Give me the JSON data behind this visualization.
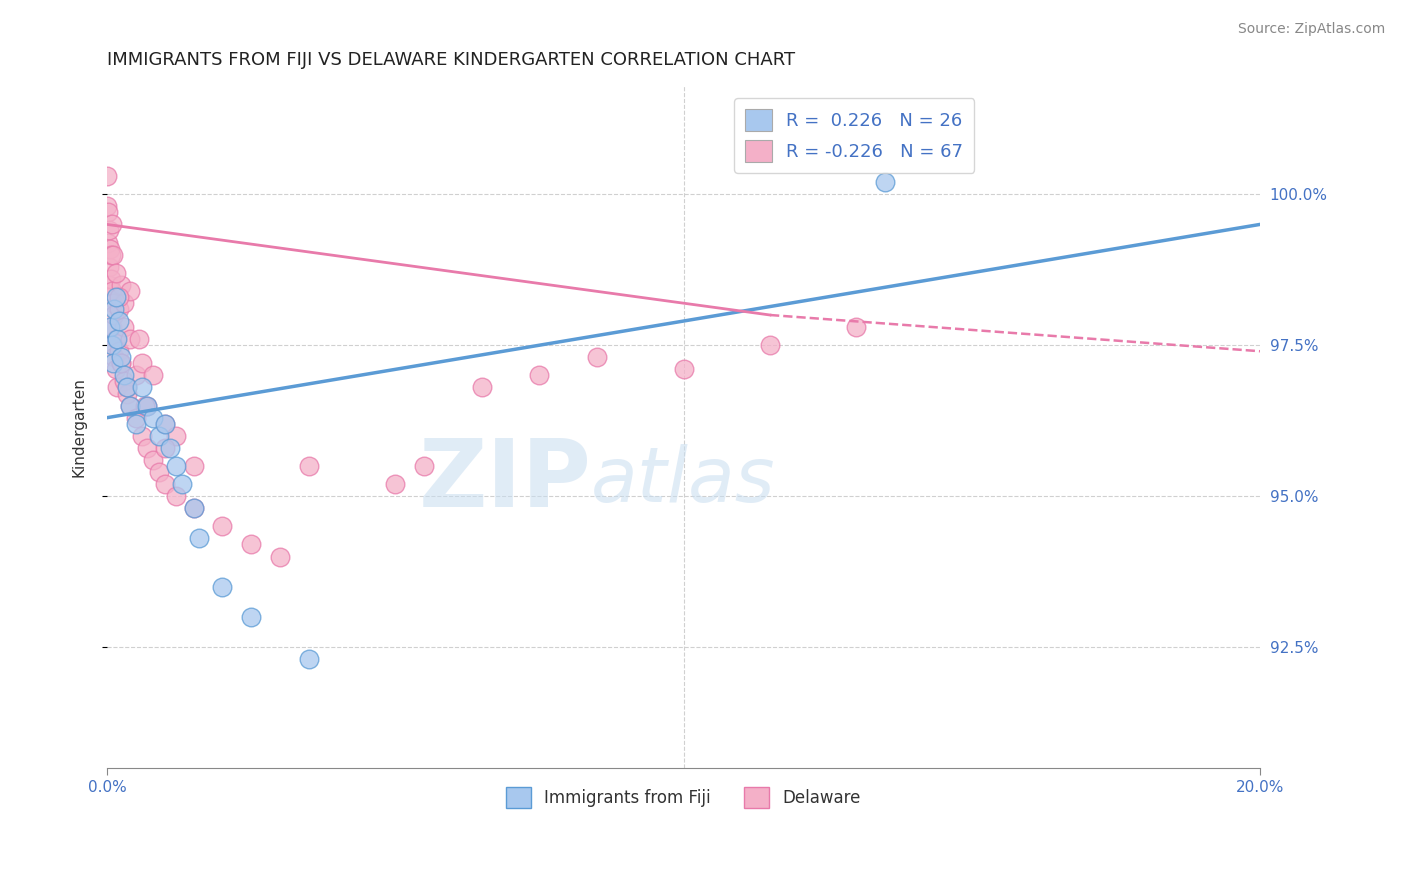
{
  "title": "IMMIGRANTS FROM FIJI VS DELAWARE KINDERGARTEN CORRELATION CHART",
  "source_text": "Source: ZipAtlas.com",
  "ylabel": "Kindergarten",
  "legend_entries": [
    {
      "label": "R =  0.226   N = 26",
      "color": "#a8c8ee"
    },
    {
      "label": "R = -0.226   N = 67",
      "color": "#f4b0c8"
    }
  ],
  "legend_bottom": [
    "Immigrants from Fiji",
    "Delaware"
  ],
  "yticks": [
    92.5,
    95.0,
    97.5,
    100.0
  ],
  "ytick_labels": [
    "92.5%",
    "95.0%",
    "97.5%",
    "100.0%"
  ],
  "xlim": [
    0.0,
    20.0
  ],
  "ylim": [
    90.5,
    101.8
  ],
  "blue_scatter": {
    "x": [
      0.05,
      0.08,
      0.1,
      0.12,
      0.15,
      0.18,
      0.2,
      0.25,
      0.3,
      0.35,
      0.4,
      0.5,
      0.6,
      0.7,
      0.8,
      0.9,
      1.0,
      1.1,
      1.2,
      1.3,
      1.5,
      1.6,
      2.0,
      2.5,
      3.5,
      13.5
    ],
    "y": [
      97.8,
      97.5,
      97.2,
      98.1,
      98.3,
      97.6,
      97.9,
      97.3,
      97.0,
      96.8,
      96.5,
      96.2,
      96.8,
      96.5,
      96.3,
      96.0,
      96.2,
      95.8,
      95.5,
      95.2,
      94.8,
      94.3,
      93.5,
      93.0,
      92.3,
      100.2
    ]
  },
  "pink_scatter": {
    "x": [
      0.0,
      0.0,
      0.02,
      0.02,
      0.03,
      0.04,
      0.04,
      0.05,
      0.05,
      0.06,
      0.07,
      0.08,
      0.08,
      0.1,
      0.1,
      0.12,
      0.12,
      0.15,
      0.15,
      0.18,
      0.2,
      0.2,
      0.25,
      0.25,
      0.3,
      0.35,
      0.4,
      0.5,
      0.6,
      0.7,
      0.8,
      0.9,
      1.0,
      1.2,
      1.5,
      2.0,
      2.5,
      3.0,
      3.5,
      0.3,
      0.4,
      0.5,
      0.7,
      1.0,
      1.2,
      0.08,
      0.1,
      0.15,
      0.2,
      0.3,
      5.0,
      5.5,
      6.5,
      7.5,
      8.5,
      10.0,
      11.5,
      13.0,
      0.4,
      0.6,
      0.8,
      1.0,
      1.5,
      0.25,
      0.35,
      0.55,
      0.65
    ],
    "y": [
      99.8,
      100.3,
      99.7,
      99.2,
      98.8,
      99.4,
      98.5,
      99.1,
      98.3,
      99.0,
      98.6,
      97.8,
      98.4,
      97.5,
      98.2,
      97.3,
      98.0,
      97.1,
      97.6,
      96.8,
      97.4,
      98.1,
      97.2,
      98.5,
      96.9,
      96.7,
      96.5,
      96.3,
      96.0,
      95.8,
      95.6,
      95.4,
      95.2,
      95.0,
      94.8,
      94.5,
      94.2,
      94.0,
      95.5,
      98.2,
      98.4,
      97.0,
      96.5,
      96.2,
      96.0,
      99.5,
      99.0,
      98.7,
      98.3,
      97.8,
      95.2,
      95.5,
      96.8,
      97.0,
      97.3,
      97.1,
      97.5,
      97.8,
      97.6,
      97.2,
      97.0,
      95.8,
      95.5,
      97.2,
      96.8,
      97.6,
      96.5
    ]
  },
  "blue_line": {
    "x": [
      0.0,
      20.0
    ],
    "y": [
      96.3,
      99.5
    ]
  },
  "pink_line_solid": {
    "x": [
      0.0,
      11.5
    ],
    "y": [
      99.5,
      98.0
    ]
  },
  "pink_line_dashed": {
    "x": [
      11.5,
      20.0
    ],
    "y": [
      98.0,
      97.4
    ]
  },
  "watermark_zip": "ZIP",
  "watermark_atlas": "atlas",
  "bg_color": "#ffffff",
  "blue_color": "#5b9bd5",
  "pink_color": "#e87aaa",
  "blue_scatter_color": "#a8c8ee",
  "pink_scatter_color": "#f4b0c8",
  "axis_color": "#4472c4",
  "grid_color": "#d0d0d0",
  "title_fontsize": 13,
  "source_fontsize": 10
}
